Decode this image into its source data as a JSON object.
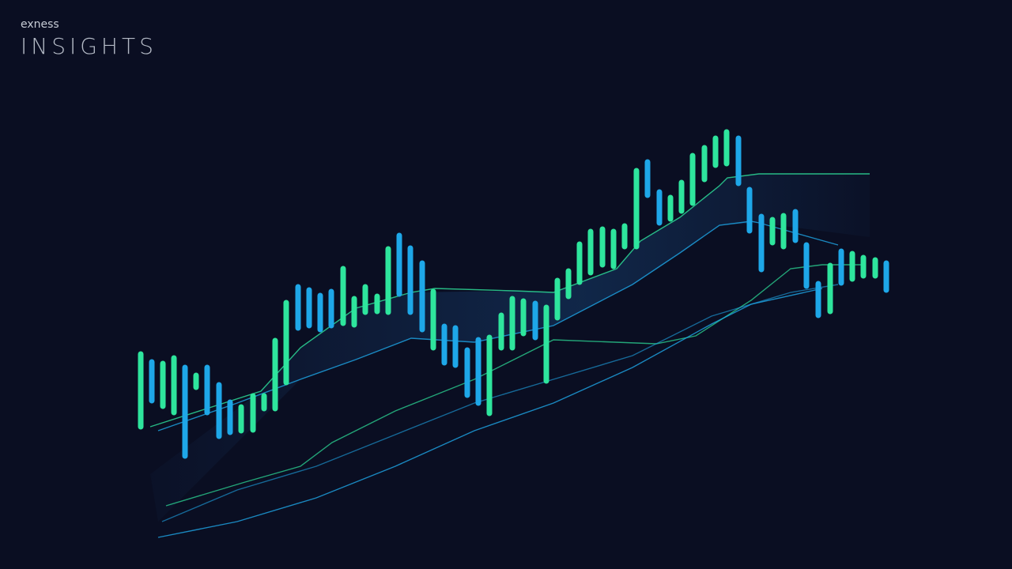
{
  "header": {
    "brand": "exness",
    "title": "INSIGHTS"
  }
}
